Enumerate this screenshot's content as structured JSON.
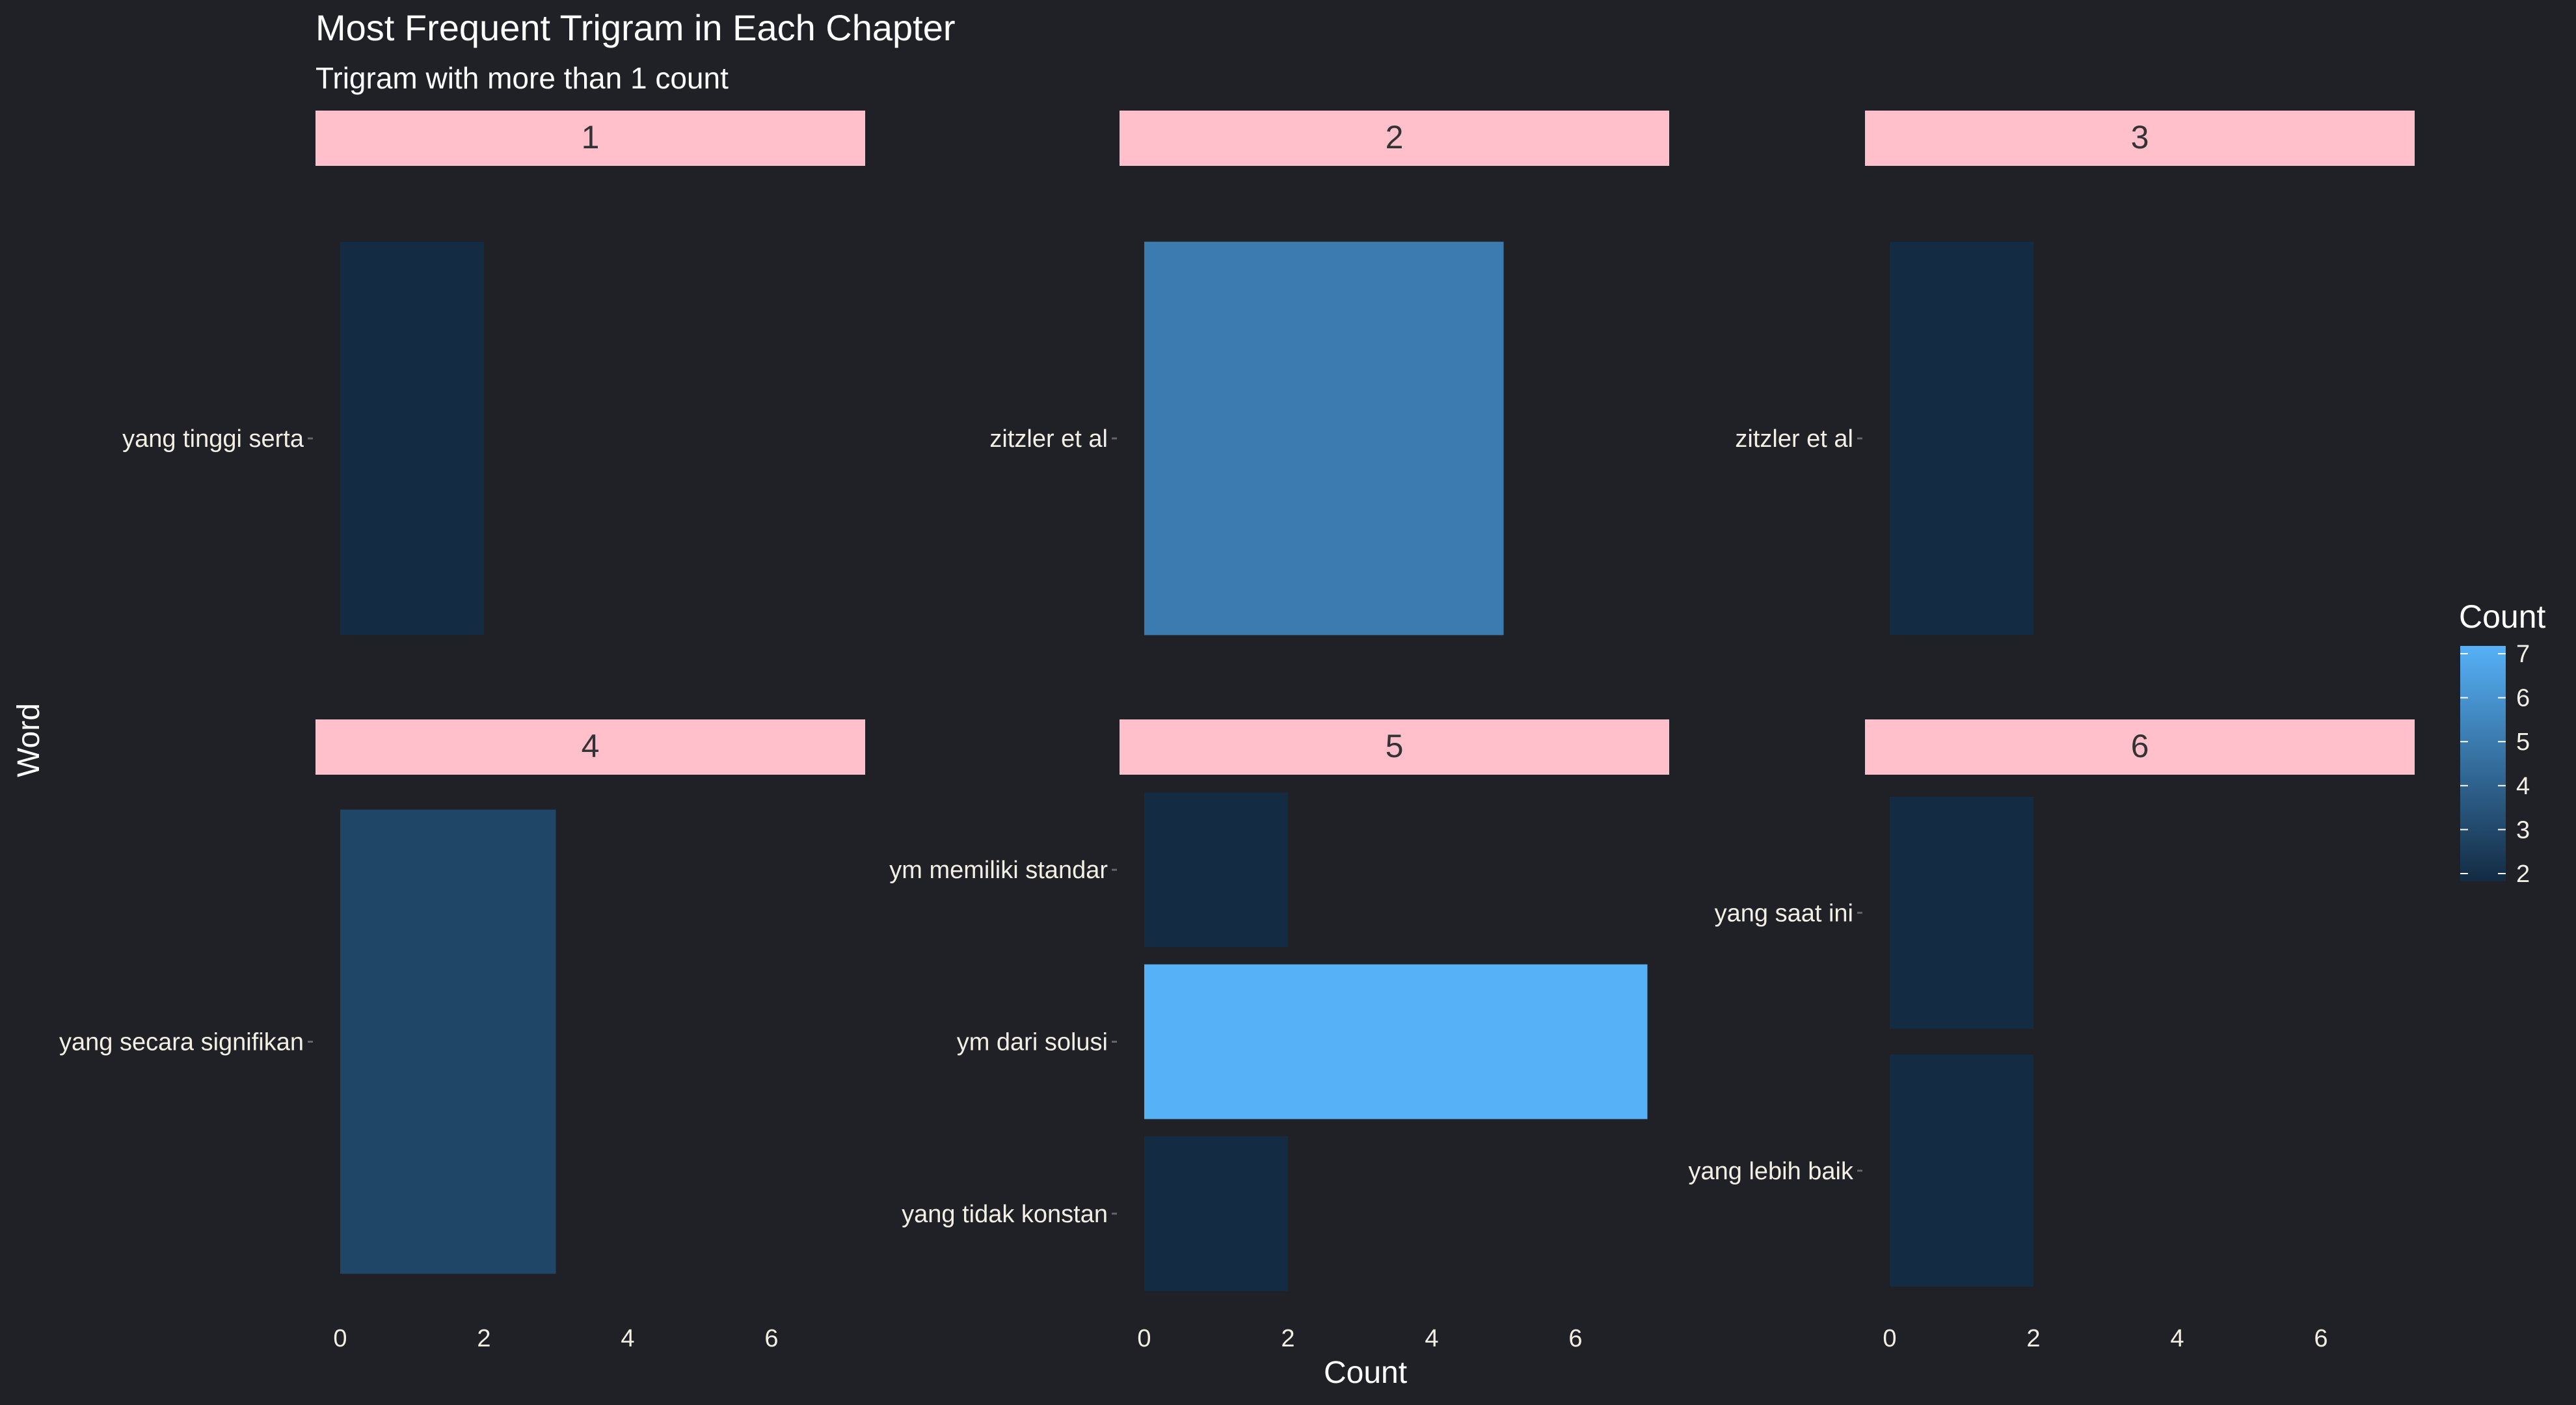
{
  "chart_data": {
    "type": "bar",
    "orientation": "horizontal",
    "title": "Most Frequent Trigram in Each Chapter",
    "subtitle": "Trigram with more than 1 count",
    "xlabel": "Count",
    "ylabel": "Word",
    "xlim": [
      0,
      7.35
    ],
    "xticks": [
      "0",
      "2",
      "4",
      "6"
    ],
    "legend": {
      "title": "Count",
      "position": "right",
      "range": [
        2,
        7
      ],
      "ticks": [
        "2",
        "3",
        "4",
        "5",
        "6",
        "7"
      ],
      "low_color": "#132b43",
      "high_color": "#56b1f7"
    },
    "grid": false,
    "strip_color": "#ffc0cb",
    "facets": [
      {
        "label": "1",
        "bars": [
          {
            "word": "yang tinggi serta",
            "count": 2
          }
        ]
      },
      {
        "label": "2",
        "bars": [
          {
            "word": "zitzler et al",
            "count": 5
          }
        ]
      },
      {
        "label": "3",
        "bars": [
          {
            "word": "zitzler et al",
            "count": 2
          }
        ]
      },
      {
        "label": "4",
        "bars": [
          {
            "word": "yang secara signifikan",
            "count": 3
          }
        ]
      },
      {
        "label": "5",
        "bars": [
          {
            "word": "ym memiliki standar",
            "count": 2
          },
          {
            "word": "ym dari solusi",
            "count": 7
          },
          {
            "word": "yang tidak konstan",
            "count": 2
          }
        ]
      },
      {
        "label": "6",
        "bars": [
          {
            "word": "yang saat ini",
            "count": 2
          },
          {
            "word": "yang lebih baik",
            "count": 2
          }
        ]
      }
    ]
  }
}
